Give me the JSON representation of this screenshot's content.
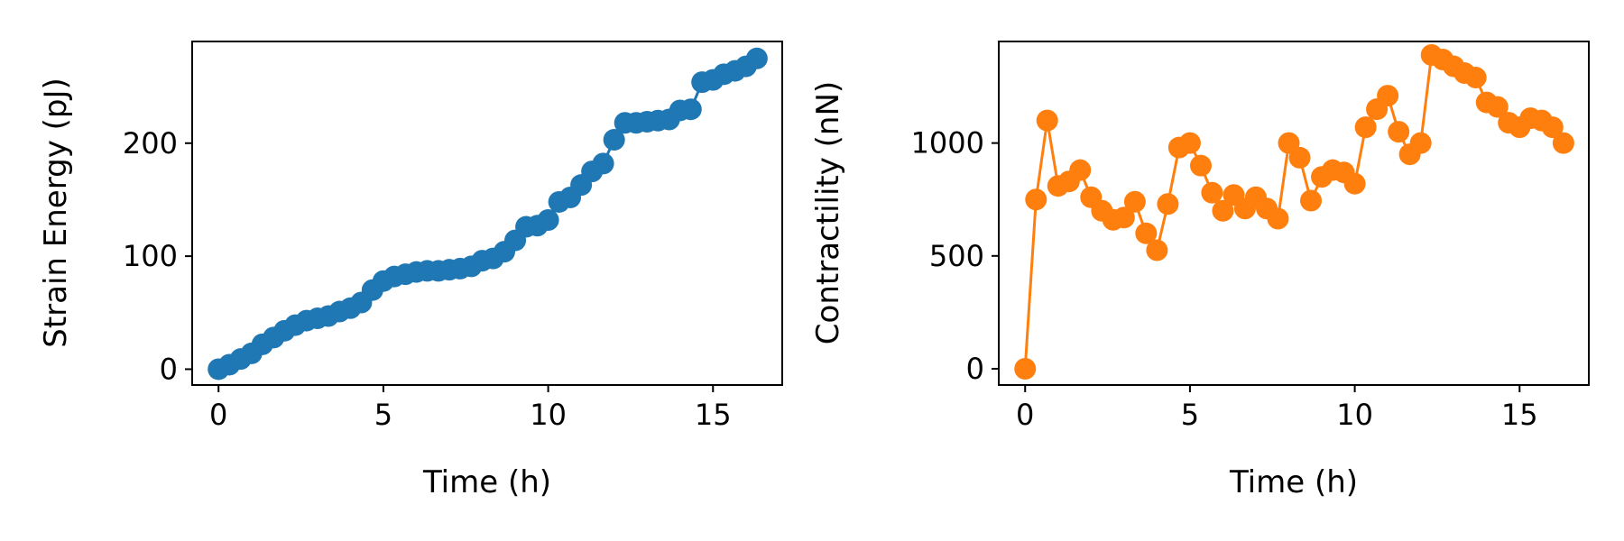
{
  "chart_data": [
    {
      "type": "line",
      "marker": "circle",
      "color": "#1f77b4",
      "xlabel": "Time (h)",
      "ylabel": "Strain Energy (pJ)",
      "xlim": [
        -0.8,
        17.1
      ],
      "ylim": [
        -14,
        290
      ],
      "xticks": [
        0,
        5,
        10,
        15
      ],
      "yticks": [
        0,
        100,
        200
      ],
      "grid": false,
      "series": [
        {
          "x": [
            0,
            0.33,
            0.67,
            1.0,
            1.33,
            1.67,
            2.0,
            2.33,
            2.67,
            3.0,
            3.33,
            3.67,
            4.0,
            4.33,
            4.67,
            5.0,
            5.33,
            5.67,
            6.0,
            6.33,
            6.67,
            7.0,
            7.33,
            7.67,
            8.0,
            8.33,
            8.67,
            9.0,
            9.33,
            9.67,
            10.0,
            10.33,
            10.67,
            11.0,
            11.33,
            11.67,
            12.0,
            12.33,
            12.67,
            13.0,
            13.33,
            13.67,
            14.0,
            14.33,
            14.67,
            15.0,
            15.33,
            15.67,
            16.0,
            16.33
          ],
          "y": [
            0,
            4,
            9,
            14,
            22,
            28,
            34,
            39,
            43,
            45,
            47,
            51,
            54,
            59,
            70,
            78,
            82,
            84,
            86,
            87,
            87,
            88,
            89,
            91,
            96,
            98,
            104,
            114,
            126,
            127,
            132,
            148,
            152,
            163,
            175,
            182,
            203,
            218,
            218,
            219,
            220,
            221,
            229,
            230,
            254,
            256,
            261,
            264,
            268,
            275
          ]
        }
      ]
    },
    {
      "type": "line",
      "marker": "circle",
      "color": "#ff7f0e",
      "xlabel": "Time (h)",
      "ylabel": "Contractility (nN)",
      "xlim": [
        -0.8,
        17.1
      ],
      "ylim": [
        -72,
        1450
      ],
      "xticks": [
        0,
        5,
        10,
        15
      ],
      "yticks": [
        0,
        500,
        1000
      ],
      "grid": false,
      "series": [
        {
          "x": [
            0,
            0.33,
            0.67,
            1.0,
            1.33,
            1.67,
            2.0,
            2.33,
            2.67,
            3.0,
            3.33,
            3.67,
            4.0,
            4.33,
            4.67,
            5.0,
            5.33,
            5.67,
            6.0,
            6.33,
            6.67,
            7.0,
            7.33,
            7.67,
            8.0,
            8.33,
            8.67,
            9.0,
            9.33,
            9.67,
            10.0,
            10.33,
            10.67,
            11.0,
            11.33,
            11.67,
            12.0,
            12.33,
            12.67,
            13.0,
            13.33,
            13.67,
            14.0,
            14.33,
            14.67,
            15.0,
            15.33,
            15.67,
            16.0,
            16.33
          ],
          "y": [
            0,
            750,
            1100,
            810,
            830,
            880,
            760,
            700,
            660,
            670,
            740,
            600,
            525,
            730,
            980,
            1000,
            900,
            780,
            700,
            770,
            710,
            760,
            710,
            665,
            1000,
            935,
            745,
            850,
            880,
            870,
            820,
            1070,
            1150,
            1210,
            1050,
            950,
            1000,
            1390,
            1370,
            1340,
            1310,
            1290,
            1180,
            1160,
            1090,
            1070,
            1110,
            1100,
            1070,
            1000
          ]
        }
      ]
    }
  ]
}
